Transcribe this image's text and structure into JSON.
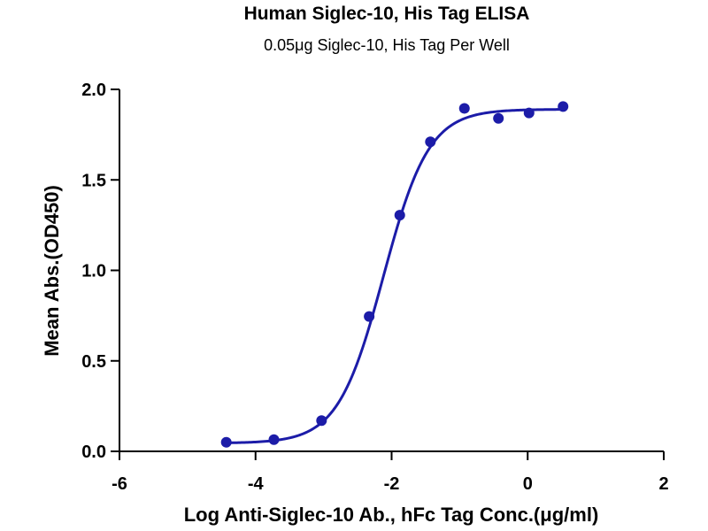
{
  "chart_data": {
    "type": "scatter",
    "title": "Human Siglec-10,  His Tag ELISA",
    "subtitle": "0.05μg Siglec-10, His Tag Per Well",
    "xlabel": "Log Anti-Siglec-10 Ab., hFc Tag Conc.(μg/ml)",
    "ylabel": "Mean Abs.(OD450)",
    "xlim": [
      -6,
      2
    ],
    "ylim": [
      0,
      2.0
    ],
    "x_ticks": [
      "-6",
      "-4",
      "-2",
      "0",
      "2"
    ],
    "y_ticks": [
      "0.0",
      "0.5",
      "1.0",
      "1.5",
      "2.0"
    ],
    "grid": false,
    "series": [
      {
        "color": "#1c1ca8",
        "points": [
          {
            "x": -4.43,
            "y": 0.05
          },
          {
            "x": -3.73,
            "y": 0.065
          },
          {
            "x": -3.03,
            "y": 0.17
          },
          {
            "x": -2.33,
            "y": 0.745
          },
          {
            "x": -1.88,
            "y": 1.305
          },
          {
            "x": -1.43,
            "y": 1.71
          },
          {
            "x": -0.93,
            "y": 1.895
          },
          {
            "x": -0.43,
            "y": 1.84
          },
          {
            "x": 0.02,
            "y": 1.87
          },
          {
            "x": 0.52,
            "y": 1.905
          }
        ],
        "fit": {
          "bottom": 0.045,
          "top": 1.89,
          "logEC50": -2.12,
          "hill": 1.3
        }
      }
    ]
  }
}
